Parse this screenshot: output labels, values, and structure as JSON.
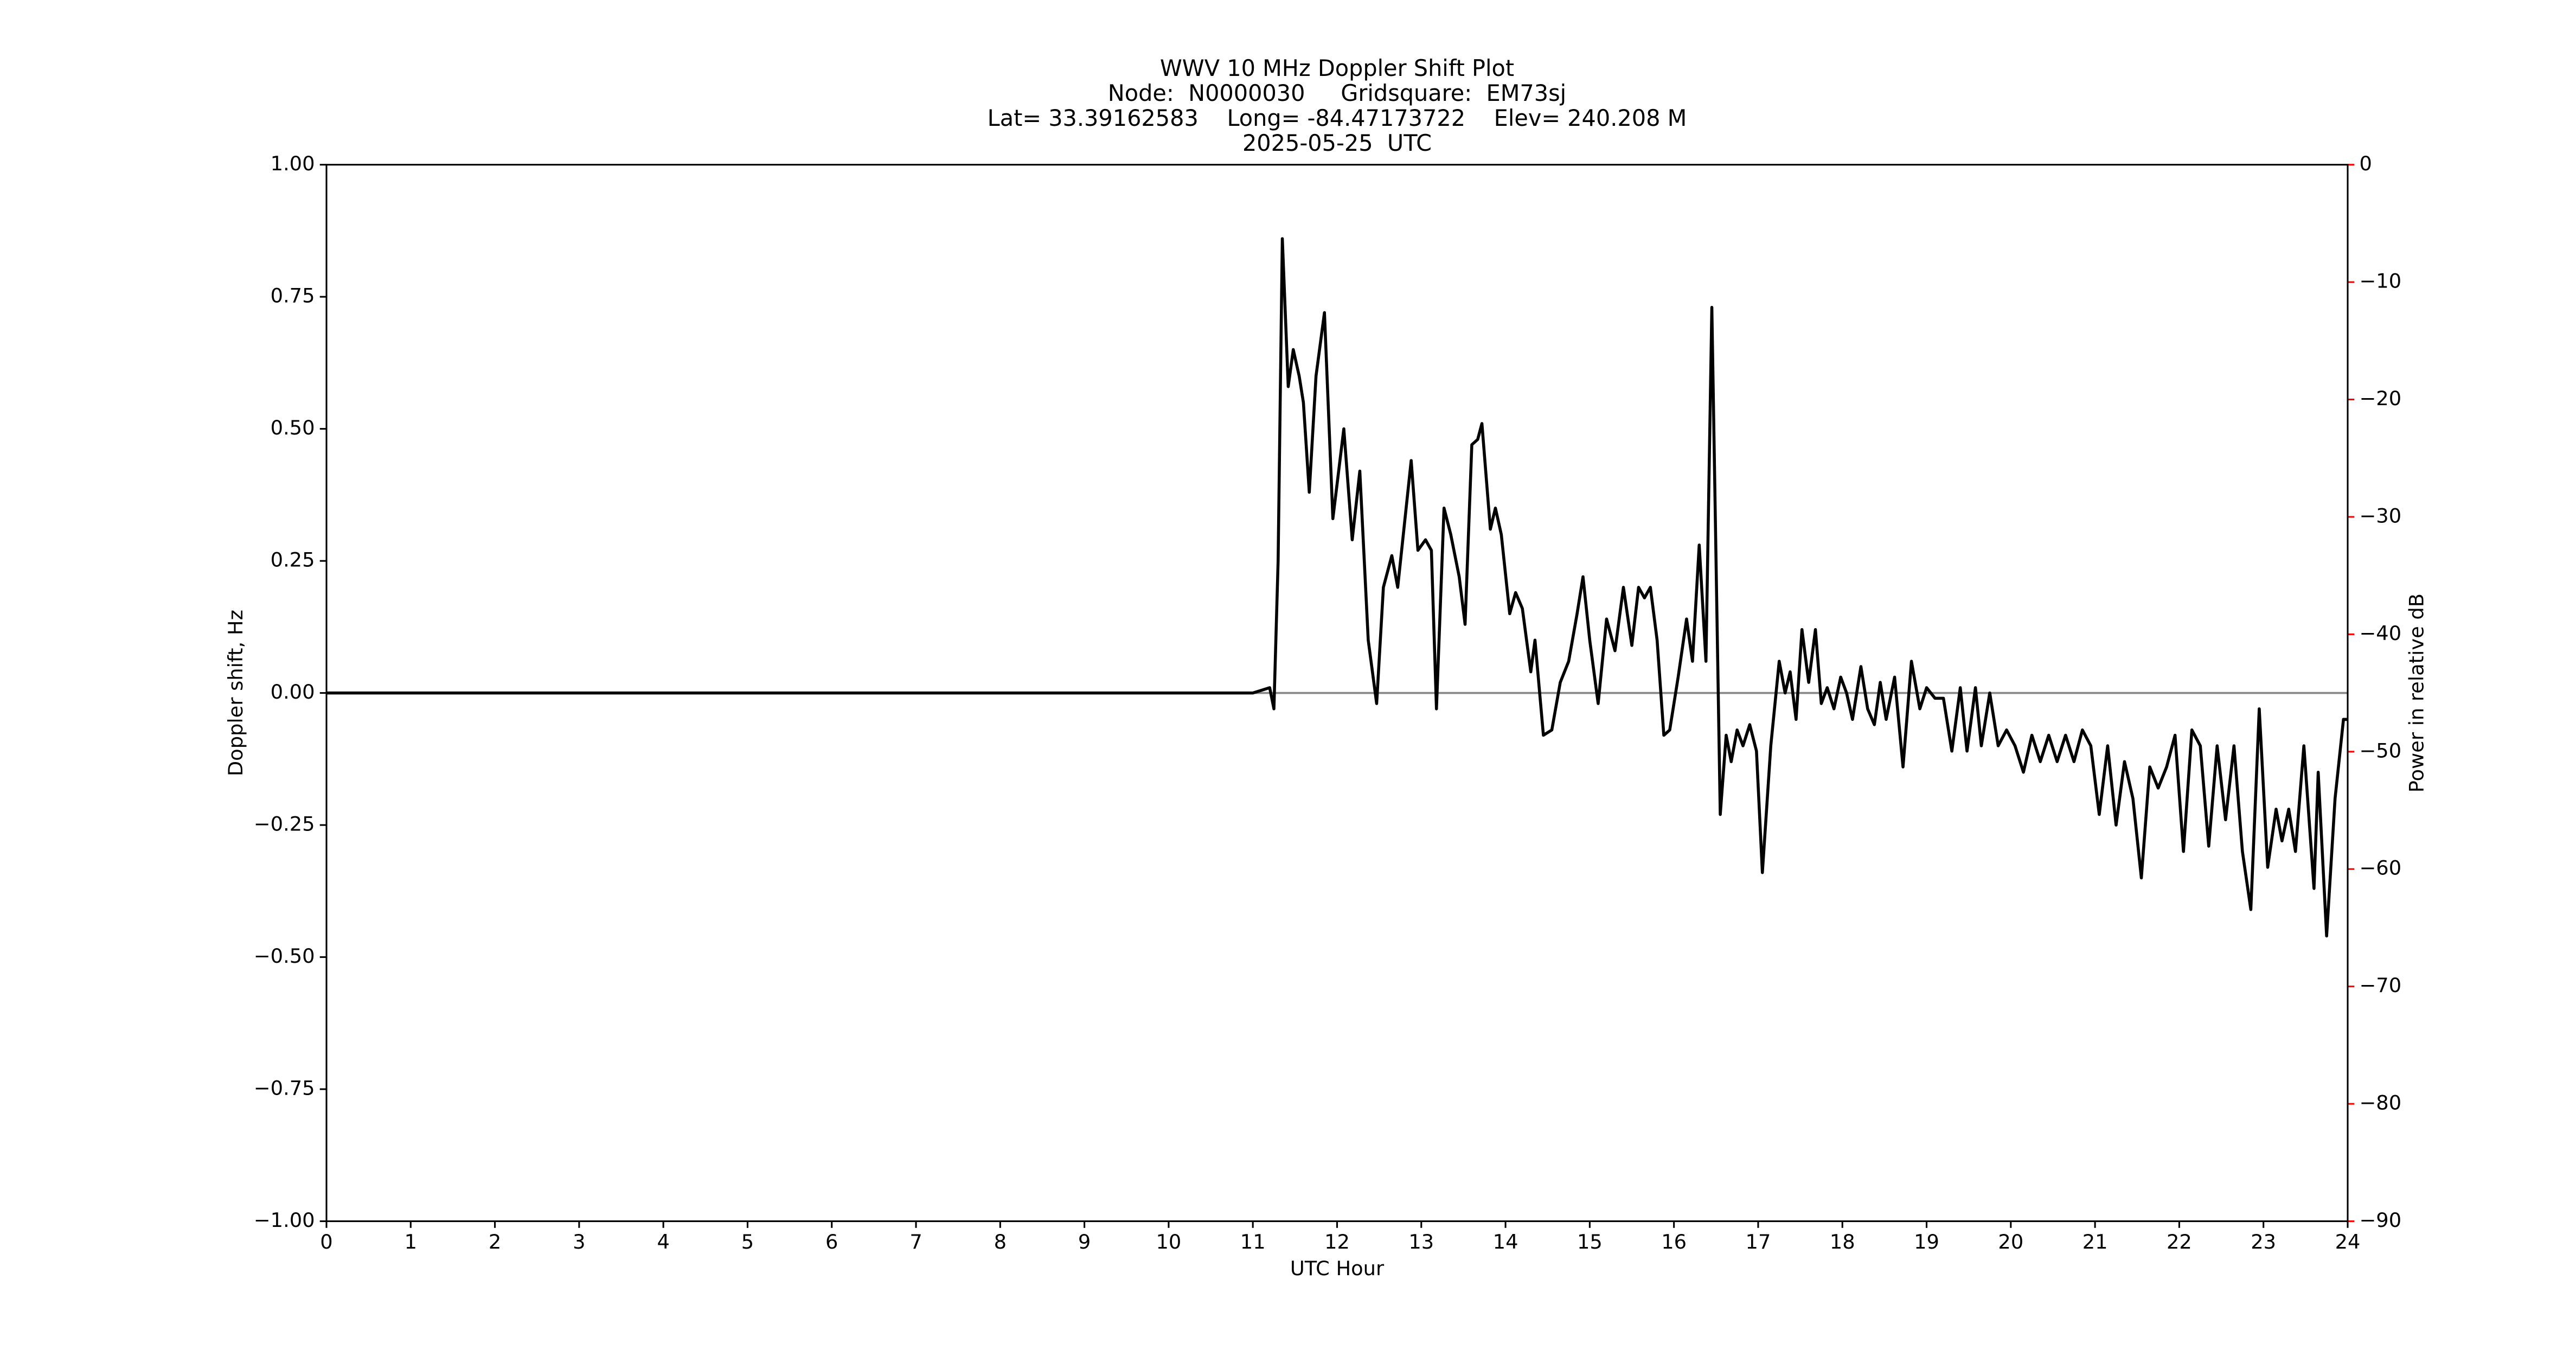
{
  "chart_data": {
    "type": "line",
    "title": [
      "WWV 10 MHz Doppler Shift Plot",
      "Node:  N0000030     Gridsquare:  EM73sj",
      "Lat= 33.39162583    Long= -84.47173722    Elev= 240.208 M",
      "2025-05-25  UTC"
    ],
    "xlabel": "UTC Hour",
    "ylabel": "Doppler shift, Hz",
    "y2label": "Power in relative dB",
    "y2color": "#ff0000",
    "xlim": [
      0,
      24
    ],
    "xticks": [
      0,
      1,
      2,
      3,
      4,
      5,
      6,
      7,
      8,
      9,
      10,
      11,
      12,
      13,
      14,
      15,
      16,
      17,
      18,
      19,
      20,
      21,
      22,
      23,
      24
    ],
    "ylim": [
      -1,
      1
    ],
    "yticks": [
      {
        "value": -1,
        "label": "−1.00"
      },
      {
        "value": -0.75,
        "label": "−0.75"
      },
      {
        "value": -0.5,
        "label": "−0.50"
      },
      {
        "value": -0.25,
        "label": "−0.25"
      },
      {
        "value": 0,
        "label": "0.00"
      },
      {
        "value": 0.25,
        "label": "0.25"
      },
      {
        "value": 0.5,
        "label": "0.50"
      },
      {
        "value": 0.75,
        "label": "0.75"
      },
      {
        "value": 1,
        "label": "1.00"
      }
    ],
    "y2lim": [
      -90,
      0
    ],
    "y2ticks": [
      {
        "value": -90,
        "label": "−90"
      },
      {
        "value": -80,
        "label": "−80"
      },
      {
        "value": -70,
        "label": "−70"
      },
      {
        "value": -60,
        "label": "−60"
      },
      {
        "value": -50,
        "label": "−50"
      },
      {
        "value": -40,
        "label": "−40"
      },
      {
        "value": -30,
        "label": "−30"
      },
      {
        "value": -20,
        "label": "−20"
      },
      {
        "value": -10,
        "label": "−10"
      },
      0
    ],
    "x": [
      0,
      11.0,
      11.1,
      11.2,
      11.25,
      11.3,
      11.35,
      11.42,
      11.48,
      11.55,
      11.6,
      11.67,
      11.75,
      11.85,
      11.95,
      12.08,
      12.18,
      12.27,
      12.37,
      12.47,
      12.55,
      12.65,
      12.72,
      12.82,
      12.88,
      12.96,
      13.05,
      13.12,
      13.18,
      13.27,
      13.35,
      13.45,
      13.52,
      13.6,
      13.67,
      13.72,
      13.82,
      13.88,
      13.95,
      14.05,
      14.12,
      14.2,
      14.3,
      14.35,
      14.45,
      14.55,
      14.65,
      14.75,
      14.85,
      14.92,
      15.0,
      15.1,
      15.2,
      15.3,
      15.4,
      15.5,
      15.58,
      15.65,
      15.72,
      15.8,
      15.88,
      15.95,
      16.05,
      16.15,
      16.22,
      16.3,
      16.38,
      16.45,
      16.55,
      16.62,
      16.68,
      16.75,
      16.82,
      16.9,
      16.98,
      17.05,
      17.15,
      17.25,
      17.32,
      17.38,
      17.45,
      17.52,
      17.6,
      17.68,
      17.75,
      17.82,
      17.9,
      17.98,
      18.05,
      18.12,
      18.22,
      18.3,
      18.38,
      18.45,
      18.52,
      18.62,
      18.72,
      18.82,
      18.92,
      19.0,
      19.1,
      19.2,
      19.3,
      19.4,
      19.48,
      19.58,
      19.65,
      19.75,
      19.85,
      19.95,
      20.05,
      20.15,
      20.25,
      20.35,
      20.45,
      20.55,
      20.65,
      20.75,
      20.85,
      20.95,
      21.05,
      21.15,
      21.25,
      21.35,
      21.45,
      21.55,
      21.65,
      21.75,
      21.85,
      21.95,
      22.05,
      22.15,
      22.25,
      22.35,
      22.45,
      22.55,
      22.65,
      22.75,
      22.85,
      22.95,
      23.05,
      23.15,
      23.22,
      23.3,
      23.38,
      23.48,
      23.6,
      23.65,
      23.75,
      23.85,
      23.95,
      24
    ],
    "series": [
      {
        "color": "#000000",
        "values": [
          0,
          0,
          0.005,
          0.01,
          -0.03,
          0.25,
          0.86,
          0.58,
          0.65,
          0.6,
          0.55,
          0.38,
          0.6,
          0.72,
          0.33,
          0.5,
          0.29,
          0.42,
          0.1,
          -0.02,
          0.2,
          0.26,
          0.2,
          0.35,
          0.44,
          0.27,
          0.29,
          0.27,
          -0.03,
          0.35,
          0.3,
          0.22,
          0.13,
          0.47,
          0.48,
          0.51,
          0.31,
          0.35,
          0.3,
          0.15,
          0.19,
          0.16,
          0.04,
          0.1,
          -0.08,
          -0.07,
          0.02,
          0.06,
          0.15,
          0.22,
          0.1,
          -0.02,
          0.14,
          0.08,
          0.2,
          0.09,
          0.2,
          0.18,
          0.2,
          0.1,
          -0.08,
          -0.07,
          0.03,
          0.14,
          0.06,
          0.28,
          0.06,
          0.73,
          -0.23,
          -0.08,
          -0.13,
          -0.07,
          -0.1,
          -0.06,
          -0.11,
          -0.34,
          -0.1,
          0.06,
          0,
          0.04,
          -0.05,
          0.12,
          0.02,
          0.12,
          -0.02,
          0.01,
          -0.03,
          0.03,
          0,
          -0.05,
          0.05,
          -0.03,
          -0.06,
          0.02,
          -0.05,
          0.03,
          -0.14,
          0.06,
          -0.03,
          0.01,
          -0.01,
          -0.01,
          -0.11,
          0.01,
          -0.11,
          0.01,
          -0.1,
          0,
          -0.1,
          -0.07,
          -0.1,
          -0.15,
          -0.08,
          -0.13,
          -0.08,
          -0.13,
          -0.08,
          -0.13,
          -0.07,
          -0.1,
          -0.23,
          -0.1,
          -0.25,
          -0.13,
          -0.2,
          -0.35,
          -0.14,
          -0.18,
          -0.14,
          -0.08,
          -0.3,
          -0.07,
          -0.1,
          -0.29,
          -0.1,
          -0.24,
          -0.1,
          -0.3,
          -0.41,
          -0.03,
          -0.33,
          -0.22,
          -0.28,
          -0.22,
          -0.3,
          -0.1,
          -0.37,
          -0.15,
          -0.46,
          -0.2,
          -0.05,
          -0.05
        ]
      }
    ]
  }
}
